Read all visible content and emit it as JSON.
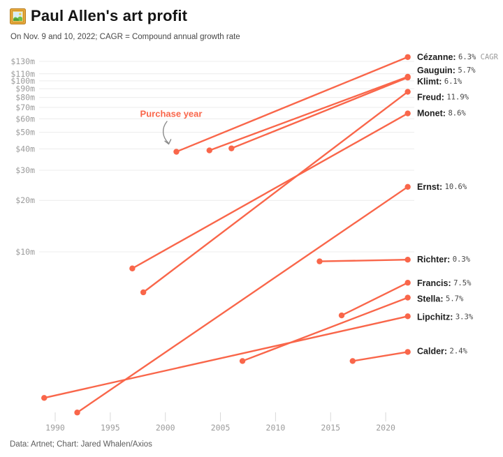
{
  "header": {
    "icon": "framed-picture-emoji",
    "title": "Paul Allen's art profit",
    "subtitle": "On Nov. 9 and 10, 2022; CAGR = Compound annual growth rate"
  },
  "footer": {
    "credit": "Data: Artnet; Chart: Jared Whalen/Axios"
  },
  "colors": {
    "line": "#f9664a",
    "dot": "#f9664a",
    "grid": "#ececec",
    "axis_text": "#9b9b9b",
    "tick_mark": "#d8d8d8",
    "annotation_text": "#f9664a",
    "annotation_arrow": "#8a8a8a",
    "artist_name_text": "#1e1e1e",
    "pct_text": "#454545",
    "cagr_suffix_text": "#9b9b9b"
  },
  "chart_data": {
    "type": "line",
    "subtype": "slope-chart-log-scale",
    "title": "Paul Allen's art profit",
    "legend": "none",
    "grid": "horizontal",
    "annotation": {
      "text": "Purchase year"
    },
    "x_axis": {
      "ticks": [
        1990,
        1995,
        2000,
        2005,
        2010,
        2015,
        2020
      ],
      "range": [
        1988,
        2024
      ]
    },
    "y_axis": {
      "scale": "log",
      "unit": "millions USD",
      "ticks": [
        {
          "label": "$130m",
          "value": 130
        },
        {
          "label": "$110m",
          "value": 110
        },
        {
          "label": "$100m",
          "value": 100
        },
        {
          "label": "$90m",
          "value": 90
        },
        {
          "label": "$80m",
          "value": 80
        },
        {
          "label": "$70m",
          "value": 70
        },
        {
          "label": "$60m",
          "value": 60
        },
        {
          "label": "$50m",
          "value": 50
        },
        {
          "label": "$40m",
          "value": 40
        },
        {
          "label": "$30m",
          "value": 30
        },
        {
          "label": "$20m",
          "value": 20
        },
        {
          "label": "$10m",
          "value": 10
        }
      ]
    },
    "series": [
      {
        "name": "Cézanne",
        "cagr": "6.3%",
        "suffix": "CAGR",
        "purchase_year": 2001,
        "purchase_price_m": 38.5,
        "sale_year": 2022,
        "sale_price_m": 137.8,
        "label_dy": 0
      },
      {
        "name": "Gauguin",
        "cagr": "5.7%",
        "suffix": "",
        "purchase_year": 2004,
        "purchase_price_m": 39.2,
        "sale_year": 2022,
        "sale_price_m": 105.7,
        "label_dy": -9
      },
      {
        "name": "Klimt",
        "cagr": "6.1%",
        "suffix": "",
        "purchase_year": 2006,
        "purchase_price_m": 40.3,
        "sale_year": 2022,
        "sale_price_m": 104.6,
        "label_dy": 6
      },
      {
        "name": "Freud",
        "cagr": "11.9%",
        "suffix": "",
        "purchase_year": 1998,
        "purchase_price_m": 5.8,
        "sale_year": 2022,
        "sale_price_m": 86.3,
        "label_dy": 8
      },
      {
        "name": "Monet",
        "cagr": "8.6%",
        "suffix": "",
        "purchase_year": 1997,
        "purchase_price_m": 8.0,
        "sale_year": 2022,
        "sale_price_m": 64.5,
        "label_dy": 0
      },
      {
        "name": "Ernst",
        "cagr": "10.6%",
        "suffix": "",
        "purchase_year": 1992,
        "purchase_price_m": 1.15,
        "sale_year": 2022,
        "sale_price_m": 24.0,
        "label_dy": 0
      },
      {
        "name": "Richter",
        "cagr": "0.3%",
        "suffix": "",
        "purchase_year": 2014,
        "purchase_price_m": 8.8,
        "sale_year": 2022,
        "sale_price_m": 9.0,
        "label_dy": 0
      },
      {
        "name": "Francis",
        "cagr": "7.5%",
        "suffix": "",
        "purchase_year": 2016,
        "purchase_price_m": 4.25,
        "sale_year": 2022,
        "sale_price_m": 6.6,
        "label_dy": 1
      },
      {
        "name": "Stella",
        "cagr": "5.7%",
        "suffix": "",
        "purchase_year": 2007,
        "purchase_price_m": 2.3,
        "sale_year": 2022,
        "sale_price_m": 5.4,
        "label_dy": 2
      },
      {
        "name": "Lipchitz",
        "cagr": "3.3%",
        "suffix": "",
        "purchase_year": 1989,
        "purchase_price_m": 1.4,
        "sale_year": 2022,
        "sale_price_m": 4.2,
        "label_dy": 1
      },
      {
        "name": "Calder",
        "cagr": "2.4%",
        "suffix": "",
        "purchase_year": 2017,
        "purchase_price_m": 2.3,
        "sale_year": 2022,
        "sale_price_m": 2.6,
        "label_dy": -1
      }
    ]
  }
}
